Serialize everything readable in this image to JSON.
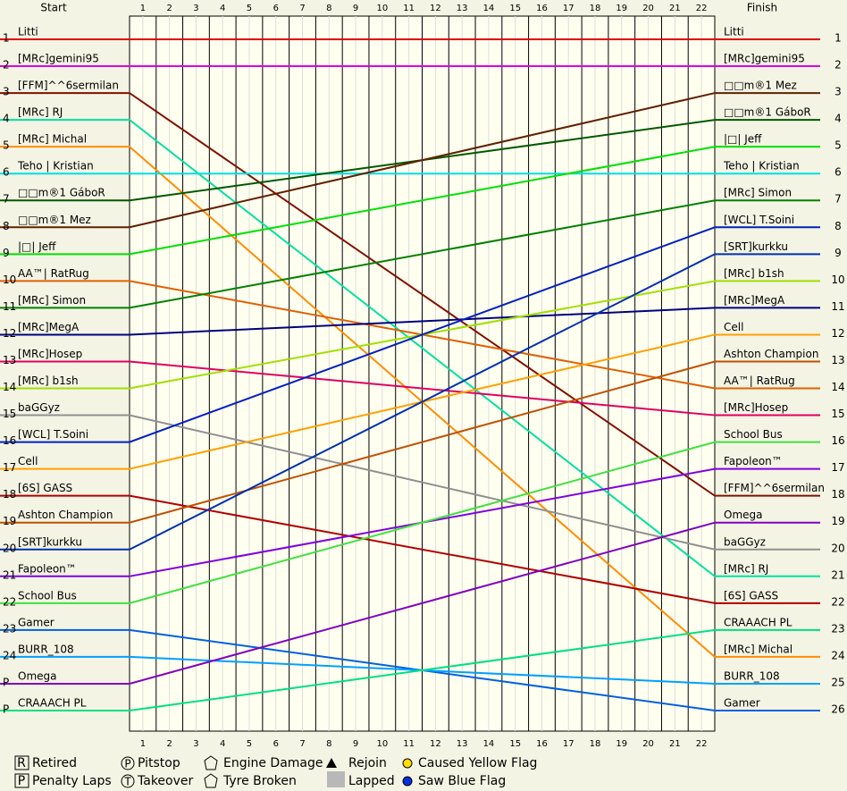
{
  "chart_data": {
    "type": "lap-chart",
    "start_header": "Start",
    "finish_header": "Finish",
    "laps": [
      1,
      2,
      3,
      4,
      5,
      6,
      7,
      8,
      9,
      10,
      11,
      12,
      13,
      14,
      15,
      16,
      17,
      18,
      19,
      20,
      21,
      22
    ],
    "start_positions": [
      "1",
      "2",
      "3",
      "4",
      "5",
      "6",
      "7",
      "8",
      "9",
      "10",
      "11",
      "12",
      "13",
      "14",
      "15",
      "16",
      "17",
      "18",
      "19",
      "20",
      "21",
      "22",
      "23",
      "24",
      "P",
      "P"
    ],
    "finish_positions": [
      1,
      2,
      3,
      4,
      5,
      6,
      7,
      8,
      9,
      10,
      11,
      12,
      13,
      14,
      15,
      16,
      17,
      18,
      19,
      20,
      21,
      22,
      23,
      24,
      25,
      26
    ],
    "start": [
      {
        "name": "Litti",
        "color": "#e00000"
      },
      {
        "name": "[MRc]gemini95",
        "color": "#e000e0"
      },
      {
        "name": "[FFM]^^6sermilan",
        "color": "#801000"
      },
      {
        "name": "[MRc] RJ",
        "color": "#00e0a0"
      },
      {
        "name": "[MRc] Michal",
        "color": "#ff8c00"
      },
      {
        "name": "Teho | Kristian",
        "color": "#00e0e0"
      },
      {
        "name": "□□m®1 GáboR",
        "color": "#005800"
      },
      {
        "name": "□□m®1 Mez",
        "color": "#602000"
      },
      {
        "name": "|□| Jeff",
        "color": "#00e000"
      },
      {
        "name": "AA™| RatRug",
        "color": "#e06000"
      },
      {
        "name": "[MRc] Simon",
        "color": "#008000"
      },
      {
        "name": "[MRc]MegA",
        "color": "#000080"
      },
      {
        "name": "[MRc]Hosep",
        "color": "#e00060"
      },
      {
        "name": "[MRc] b1sh",
        "color": "#a0e000"
      },
      {
        "name": "baGGyz",
        "color": "#909090"
      },
      {
        "name": "[WCL] T.Soini",
        "color": "#0020c0"
      },
      {
        "name": "Cell",
        "color": "#ffa000"
      },
      {
        "name": "[6S] GASS",
        "color": "#b00000"
      },
      {
        "name": "Ashton Champion",
        "color": "#c05000"
      },
      {
        "name": "[SRT]kurkku",
        "color": "#0030b0"
      },
      {
        "name": "Fapoleon™",
        "color": "#8000e0"
      },
      {
        "name": "School Bus",
        "color": "#40e040"
      },
      {
        "name": "Gamer",
        "color": "#0060e0"
      },
      {
        "name": "BURR_108",
        "color": "#00a0ff"
      },
      {
        "name": "Omega",
        "color": "#8000c0"
      },
      {
        "name": "CRAAACH PL",
        "color": "#00e080"
      }
    ],
    "finish": [
      "Litti",
      "[MRc]gemini95",
      "□□m®1 Mez",
      "□□m®1 GáboR",
      "|□| Jeff",
      "Teho | Kristian",
      "[MRc] Simon",
      "[WCL] T.Soini",
      "[SRT]kurkku",
      "[MRc] b1sh",
      "[MRc]MegA",
      "Cell",
      "Ashton Champion",
      "AA™| RatRug",
      "[MRc]Hosep",
      "School Bus",
      "Fapoleon™",
      "[FFM]^^6sermilan",
      "Omega",
      "baGGyz",
      "[MRc] RJ",
      "[6S] GASS",
      "CRAAACH PL",
      "[MRc] Michal",
      "BURR_108",
      "Gamer"
    ],
    "legend": {
      "retired": "Retired",
      "penalty": "Penalty Laps",
      "pitstop": "Pitstop",
      "takeover": "Takeover",
      "engine": "Engine Damage",
      "tyre": "Tyre Broken",
      "rejoin": "Rejoin",
      "lapped": "Lapped",
      "yellow": "Caused Yellow Flag",
      "blue": "Saw Blue Flag"
    }
  }
}
